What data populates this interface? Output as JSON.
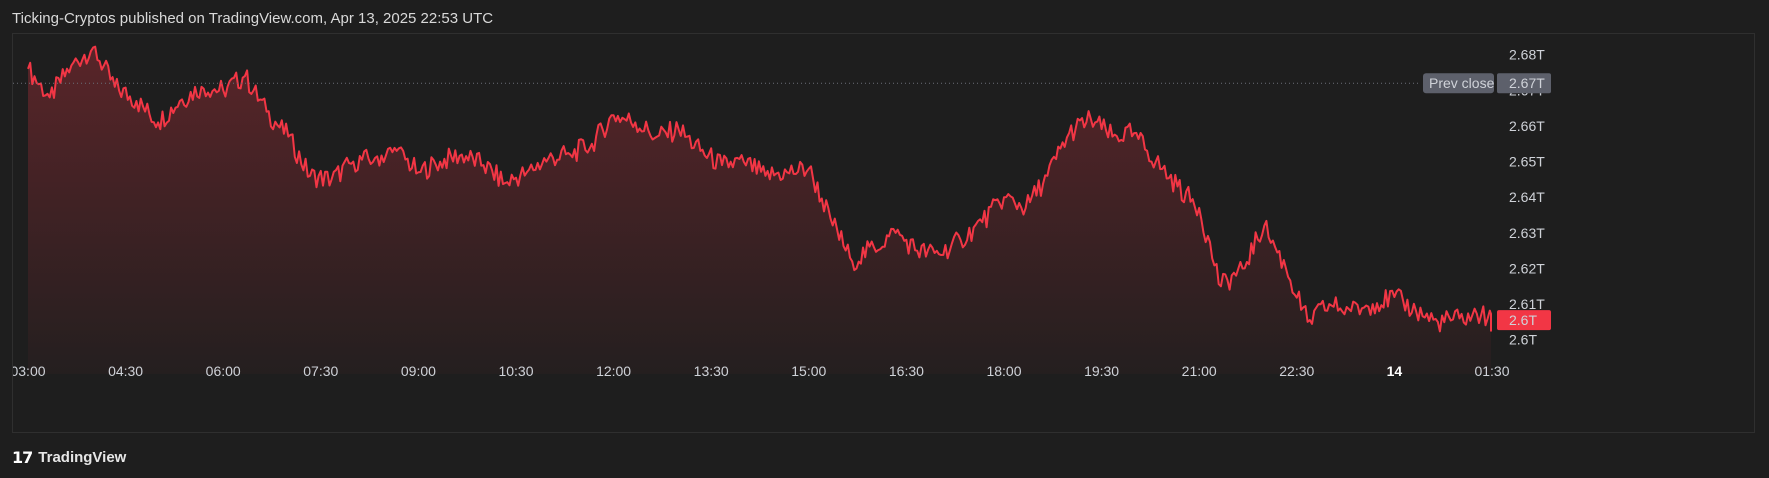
{
  "header": {
    "text": "Ticking-Cryptos published on TradingView.com, Apr 13, 2025 22:53 UTC"
  },
  "footer": {
    "brand": "TradingView",
    "logo_glyph": "17"
  },
  "colors": {
    "background": "#1e1e1e",
    "line": "#f23645",
    "prev_close_tag": "#5d606b",
    "price_tag": "#f23645"
  },
  "chart_data": {
    "type": "area",
    "x_tick_labels": [
      "03:00",
      "04:30",
      "06:00",
      "07:30",
      "09:00",
      "10:30",
      "12:00",
      "13:30",
      "15:00",
      "16:30",
      "18:00",
      "19:30",
      "21:00",
      "22:30",
      "14",
      "01:30"
    ],
    "x_bold_ticks": [
      "14"
    ],
    "y_tick_labels": [
      "2.68T",
      "2.67T",
      "2.66T",
      "2.65T",
      "2.64T",
      "2.63T",
      "2.62T",
      "2.61T",
      "2.6T"
    ],
    "ylim": [
      2.596,
      2.683
    ],
    "prev_close": {
      "label": "Prev close",
      "value_label": "2.67T",
      "value": 2.672
    },
    "last_price": {
      "value_label": "2.6T",
      "value": 2.6055
    },
    "series": [
      {
        "x": [
          "03:00",
          "03:20",
          "03:40",
          "04:00",
          "04:20",
          "04:40",
          "05:00",
          "05:20",
          "05:40",
          "06:00",
          "06:20",
          "06:40",
          "07:00",
          "07:20",
          "07:40",
          "08:00",
          "08:20",
          "08:40",
          "09:00",
          "09:20",
          "09:40",
          "10:00",
          "10:20",
          "10:40",
          "11:00",
          "11:20",
          "11:40",
          "12:00",
          "12:20",
          "12:40",
          "13:00",
          "13:20",
          "13:40",
          "14:00",
          "14:20",
          "14:40",
          "15:00",
          "15:20",
          "15:40",
          "16:00",
          "16:20",
          "16:40",
          "17:00",
          "17:20",
          "17:40",
          "18:00",
          "18:20",
          "18:40",
          "19:00",
          "19:20",
          "19:40",
          "20:00",
          "20:20",
          "20:40",
          "21:00",
          "21:20",
          "21:40",
          "22:00",
          "22:20",
          "22:40",
          "23:00",
          "23:20",
          "23:40",
          "00:00",
          "00:20",
          "00:40",
          "01:00",
          "01:20",
          "01:40",
          "02:00"
        ],
        "values": [
          2.676,
          2.668,
          2.677,
          2.682,
          2.671,
          2.667,
          2.661,
          2.667,
          2.671,
          2.67,
          2.674,
          2.664,
          2.657,
          2.646,
          2.645,
          2.65,
          2.651,
          2.653,
          2.647,
          2.65,
          2.652,
          2.649,
          2.644,
          2.647,
          2.651,
          2.652,
          2.655,
          2.663,
          2.661,
          2.657,
          2.659,
          2.653,
          2.649,
          2.65,
          2.646,
          2.647,
          2.648,
          2.634,
          2.622,
          2.626,
          2.63,
          2.625,
          2.624,
          2.628,
          2.633,
          2.64,
          2.637,
          2.646,
          2.658,
          2.662,
          2.657,
          2.658,
          2.65,
          2.643,
          2.637,
          2.615,
          2.62,
          2.632,
          2.62,
          2.605,
          2.61,
          2.608,
          2.61,
          2.612,
          2.608,
          2.605,
          2.606,
          2.607,
          2.604,
          2.6055
        ]
      }
    ]
  }
}
